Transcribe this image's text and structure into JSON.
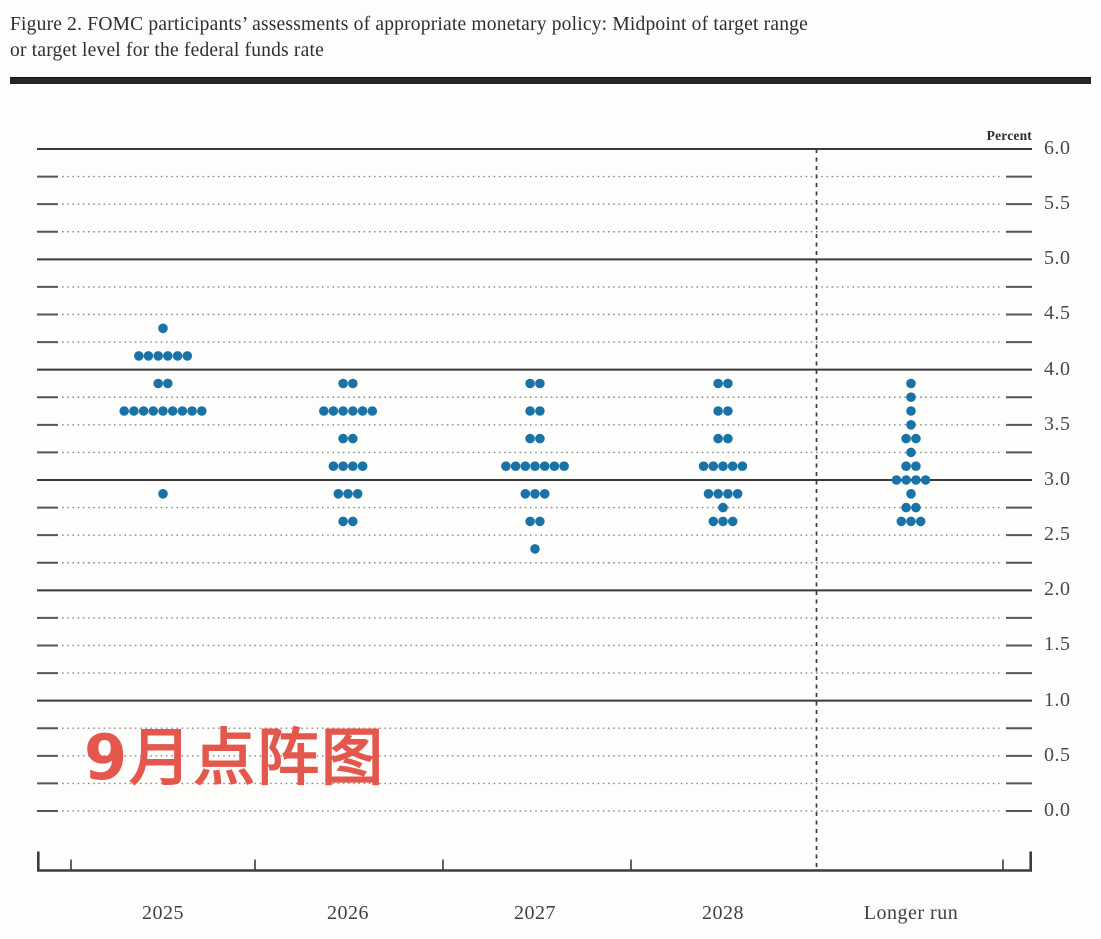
{
  "title": {
    "line1": "Figure 2. FOMC participants’ assessments of appropriate monetary policy: Midpoint of target range",
    "line2": "or target level for the federal funds rate"
  },
  "overlay": {
    "text": "9月点阵图",
    "color": "#e4574d"
  },
  "colors": {
    "dot": "#1973a6",
    "solid_gridline": "#3a3a3c",
    "dotted_gridline": "#8a8a8c",
    "axis": "#3c3c3e",
    "text_dark": "#2e2e32",
    "tick_text": "#48484f"
  },
  "chart_data": {
    "type": "scatter",
    "subtype": "fomc-dot-plot",
    "title": "FOMC participants’ assessments of appropriate monetary policy: Midpoint of target range or target level for the federal funds rate",
    "y_axis_unit": "Percent",
    "ylabel_side": "right",
    "ylim": [
      0.0,
      6.0
    ],
    "ytick_labels": [
      "6.0",
      "5.5",
      "5.0",
      "4.5",
      "4.0",
      "3.5",
      "3.0",
      "2.5",
      "2.0",
      "1.5",
      "1.0",
      "0.5",
      "0.0"
    ],
    "grid": {
      "solid_lines_at": [
        6.0,
        5.0,
        4.0,
        3.0,
        2.0,
        1.0
      ],
      "dotted_lines_every": 0.25,
      "bottom_dotted_line_at": 0.0
    },
    "legend_position": "none",
    "categories": [
      "2025",
      "2026",
      "2027",
      "2028",
      "Longer run"
    ],
    "separator": "dashed vertical line between 2028 and Longer run",
    "series": [
      {
        "category": "2025",
        "dots": [
          {
            "rate": 4.375,
            "count": 1
          },
          {
            "rate": 4.125,
            "count": 6
          },
          {
            "rate": 3.875,
            "count": 2
          },
          {
            "rate": 3.625,
            "count": 9
          },
          {
            "rate": 2.875,
            "count": 1
          }
        ]
      },
      {
        "category": "2026",
        "dots": [
          {
            "rate": 3.875,
            "count": 2
          },
          {
            "rate": 3.625,
            "count": 6
          },
          {
            "rate": 3.375,
            "count": 2
          },
          {
            "rate": 3.125,
            "count": 4
          },
          {
            "rate": 2.875,
            "count": 3
          },
          {
            "rate": 2.625,
            "count": 2
          }
        ]
      },
      {
        "category": "2027",
        "dots": [
          {
            "rate": 3.875,
            "count": 2
          },
          {
            "rate": 3.625,
            "count": 2
          },
          {
            "rate": 3.375,
            "count": 2
          },
          {
            "rate": 3.125,
            "count": 7
          },
          {
            "rate": 2.875,
            "count": 3
          },
          {
            "rate": 2.625,
            "count": 2
          },
          {
            "rate": 2.375,
            "count": 1
          }
        ]
      },
      {
        "category": "2028",
        "dots": [
          {
            "rate": 3.875,
            "count": 2
          },
          {
            "rate": 3.625,
            "count": 2
          },
          {
            "rate": 3.375,
            "count": 2
          },
          {
            "rate": 3.125,
            "count": 5
          },
          {
            "rate": 2.875,
            "count": 4
          },
          {
            "rate": 2.75,
            "count": 1
          },
          {
            "rate": 2.625,
            "count": 3
          }
        ]
      },
      {
        "category": "Longer run",
        "dots": [
          {
            "rate": 3.875,
            "count": 1
          },
          {
            "rate": 3.75,
            "count": 1
          },
          {
            "rate": 3.625,
            "count": 1
          },
          {
            "rate": 3.5,
            "count": 1
          },
          {
            "rate": 3.375,
            "count": 2
          },
          {
            "rate": 3.25,
            "count": 1
          },
          {
            "rate": 3.125,
            "count": 2
          },
          {
            "rate": 3.0,
            "count": 4
          },
          {
            "rate": 2.875,
            "count": 1
          },
          {
            "rate": 2.75,
            "count": 2
          },
          {
            "rate": 2.625,
            "count": 3
          }
        ]
      }
    ]
  }
}
